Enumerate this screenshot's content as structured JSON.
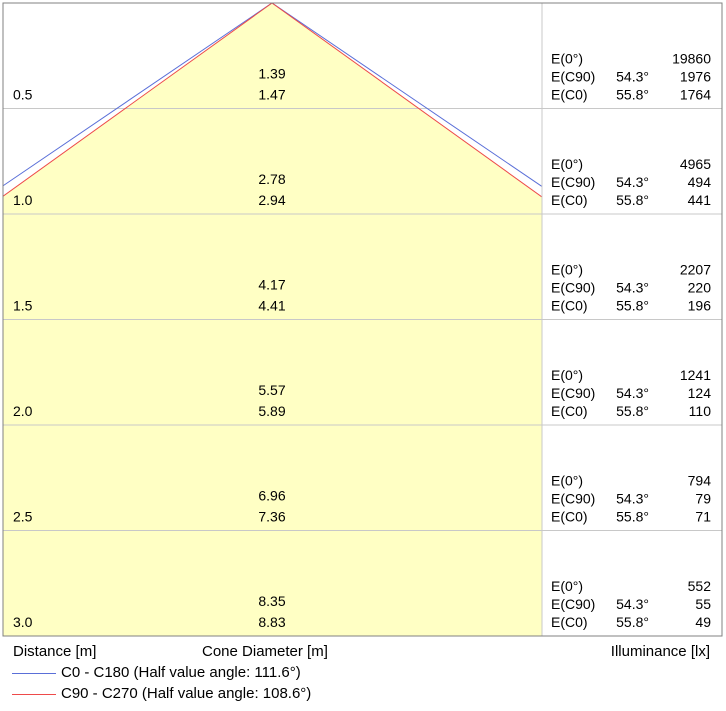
{
  "chart_data": {
    "type": "cone-diagram",
    "rows": [
      {
        "distance": "0.5",
        "cone_c0": "1.39",
        "cone_c90": "1.47",
        "e0": "19860",
        "ec90": "1976",
        "ec0": "1764"
      },
      {
        "distance": "1.0",
        "cone_c0": "2.78",
        "cone_c90": "2.94",
        "e0": "4965",
        "ec90": "494",
        "ec0": "441"
      },
      {
        "distance": "1.5",
        "cone_c0": "4.17",
        "cone_c90": "4.41",
        "e0": "2207",
        "ec90": "220",
        "ec0": "196"
      },
      {
        "distance": "2.0",
        "cone_c0": "5.57",
        "cone_c90": "5.89",
        "e0": "1241",
        "ec90": "124",
        "ec0": "110"
      },
      {
        "distance": "2.5",
        "cone_c0": "6.96",
        "cone_c90": "7.36",
        "e0": "794",
        "ec90": "79",
        "ec0": "71"
      },
      {
        "distance": "3.0",
        "cone_c0": "8.35",
        "cone_c90": "8.83",
        "e0": "552",
        "ec90": "55",
        "ec0": "49"
      }
    ],
    "labels": {
      "e0": "E(0°)",
      "ec90": "E(C90)",
      "ec0": "E(C0)"
    },
    "angle_c90": "54.3°",
    "angle_c0": "55.8°",
    "half_angle_c0": 111.6,
    "half_angle_c90": 108.6,
    "colors": {
      "fill": "#ffffc4",
      "c0_line": "#5a6fd8",
      "c90_line": "#ee4a4a",
      "grid": "#c8c8c8",
      "border": "#808080"
    }
  },
  "footer": {
    "distance_label": "Distance [m]",
    "cone_label": "Cone Diameter [m]",
    "illuminance_label": "Illuminance [lx]"
  },
  "legend": [
    {
      "label": "C0 - C180 (Half value angle: 111.6°)",
      "color": "#5a6fd8"
    },
    {
      "label": "C90 - C270 (Half value angle: 108.6°)",
      "color": "#ee4a4a"
    }
  ]
}
